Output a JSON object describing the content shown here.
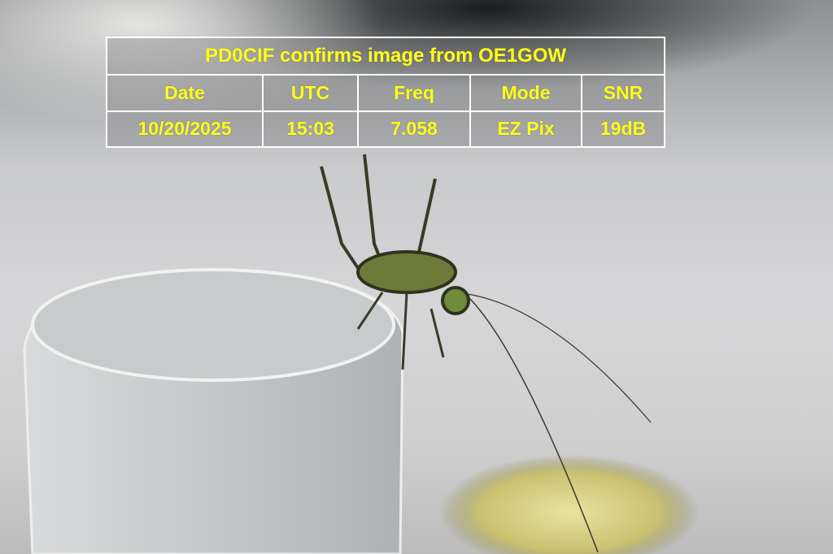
{
  "overlay": {
    "title": "PD0CIF confirms image from OE1GOW",
    "headers": [
      "Date",
      "UTC",
      "Freq",
      "Mode",
      "SNR"
    ],
    "values": [
      "10/20/2025",
      "15:03",
      "7.058",
      "EZ Pix",
      "19dB"
    ],
    "text_color": "#ffff1a",
    "border_color": "#ffffff"
  },
  "photo": {
    "subject": "cricket-on-glass"
  }
}
